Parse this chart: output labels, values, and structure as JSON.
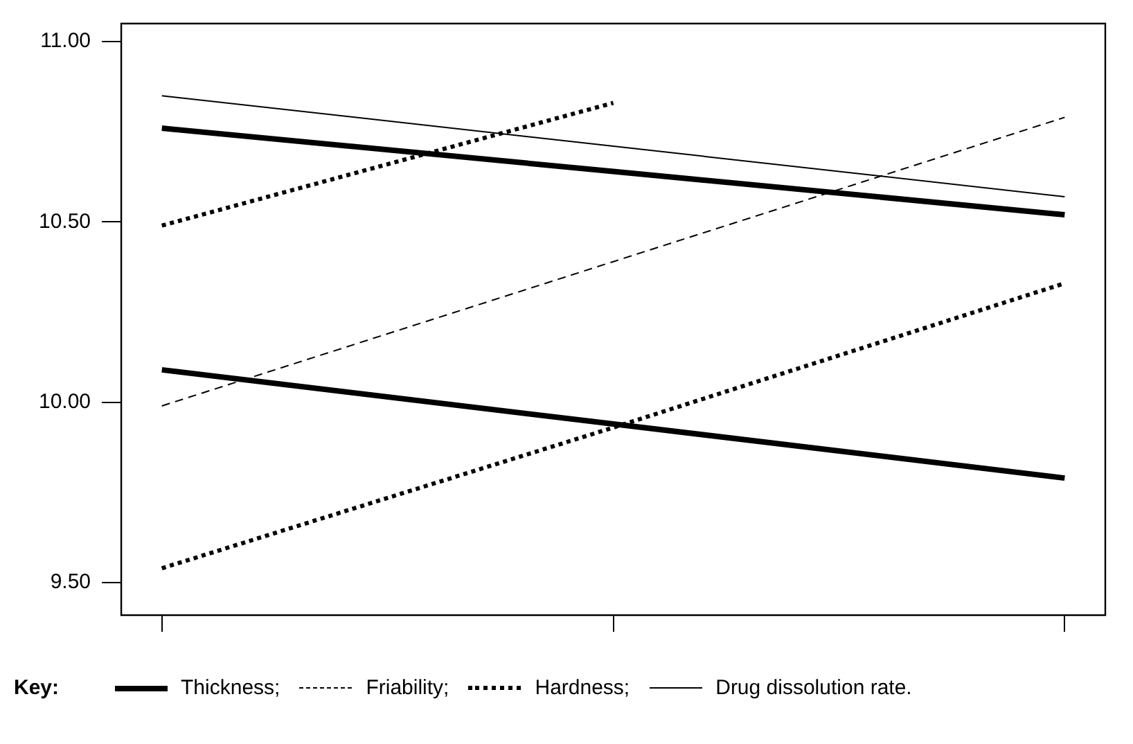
{
  "chart_data": {
    "type": "line",
    "legend_title": "Key:",
    "legend": "bottom",
    "grid": false,
    "marker": "none",
    "categories": [
      null,
      null,
      null
    ],
    "ylim": [
      9.41,
      11.05
    ],
    "yticks": [
      {
        "value": 9.5,
        "label": "9.50"
      },
      {
        "value": 10,
        "label": "10.00"
      },
      {
        "value": 10.5,
        "label": "10.50"
      },
      {
        "value": 11,
        "label": "11.00"
      }
    ],
    "series": [
      {
        "name": "Thickness;",
        "color": "#000000",
        "line_style": "solid",
        "values": [
          10.76,
          10.64,
          10.52
        ]
      },
      {
        "color": "#000000",
        "line_style": "solid",
        "values": [
          10.09,
          9.94,
          9.79
        ]
      },
      {
        "name": "Friability;",
        "color": "#000000",
        "line_style": "dashed",
        "values": [
          9.99,
          10.39,
          10.79
        ]
      },
      {
        "name": "Hardness;",
        "color": "#000000",
        "line_style": "dotted",
        "values": [
          10.49,
          10.83,
          null
        ]
      },
      {
        "color": "#000000",
        "line_style": "dotted",
        "values": [
          9.54,
          9.93,
          10.33
        ]
      },
      {
        "name": "Drug dissolution rate.",
        "color": "#000000",
        "line_style": "solid",
        "values": [
          10.85,
          10.71,
          10.57
        ]
      }
    ]
  }
}
